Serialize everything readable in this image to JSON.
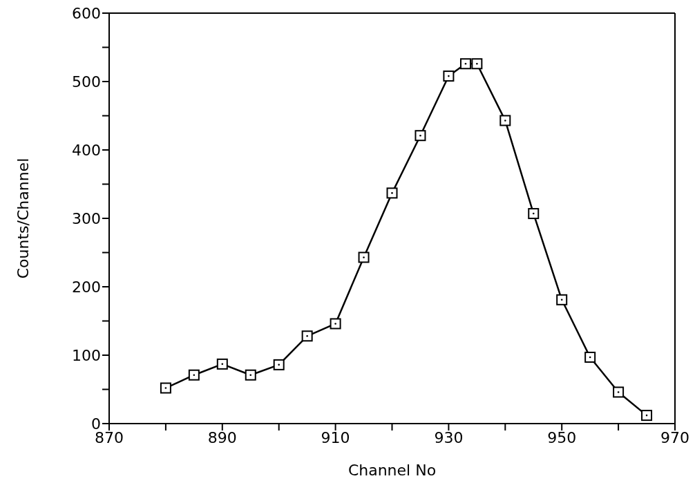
{
  "chart_data": {
    "type": "line",
    "xlabel": "Channel No",
    "ylabel": "Counts/Channel",
    "x": [
      880,
      885,
      890,
      895,
      900,
      905,
      910,
      915,
      920,
      925,
      930,
      933,
      935,
      940,
      945,
      950,
      955,
      960,
      965
    ],
    "series": [
      {
        "color": "#000000",
        "values": [
          52,
          71,
          87,
          71,
          86,
          128,
          146,
          243,
          337,
          421,
          508,
          526,
          526,
          443,
          307,
          181,
          97,
          46,
          12
        ]
      }
    ],
    "xlim": [
      870,
      970
    ],
    "xticks": [
      870,
      {
        "value": 880,
        "label": null
      },
      890,
      {
        "value": 900,
        "label": null
      },
      910,
      {
        "value": 920,
        "label": null
      },
      930,
      {
        "value": 940,
        "label": null
      },
      950,
      {
        "value": 960,
        "label": null
      },
      970
    ],
    "ylim": [
      0,
      600
    ],
    "yticks": [
      0,
      {
        "value": 50,
        "label": null
      },
      100,
      {
        "value": 150,
        "label": null
      },
      200,
      {
        "value": 250,
        "label": null
      },
      300,
      {
        "value": 350,
        "label": null
      },
      400,
      {
        "value": 450,
        "label": null
      },
      500,
      {
        "value": 550,
        "label": null
      },
      600
    ],
    "grid": false,
    "marker": "square",
    "line_style": "solid",
    "legend": false
  }
}
